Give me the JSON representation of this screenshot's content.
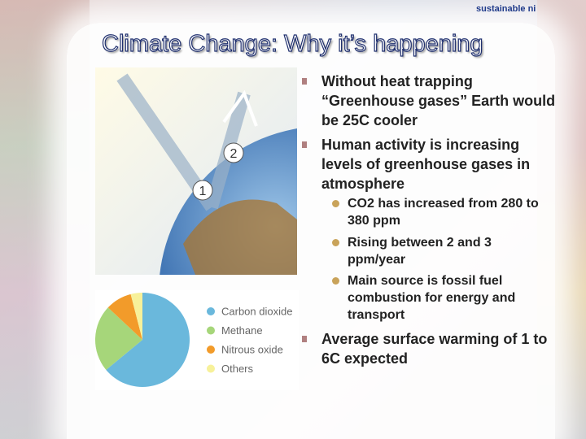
{
  "header": {
    "title": "Climate Change: Why it’s happening",
    "logo": "sustainable ni"
  },
  "diagram": {
    "labels": [
      "1",
      "2"
    ]
  },
  "bullets": [
    {
      "text": "Without heat trapping “Greenhouse gases” Earth would be 25C cooler",
      "sub": []
    },
    {
      "text": "Human activity is increasing levels of greenhouse gases in atmosphere",
      "sub": [
        "CO2 has increased from 280 to 380 ppm",
        "Rising between 2 and 3 ppm/year",
        "Main source is fossil fuel combustion for energy and transport"
      ]
    },
    {
      "text": "Average surface warming of 1 to 6C expected",
      "sub": []
    }
  ],
  "chart_data": {
    "type": "pie",
    "categories": [
      "Carbon dioxide",
      "Methane",
      "Nitrous oxide",
      "Others"
    ],
    "values": [
      64,
      23,
      9,
      4
    ],
    "colors": [
      "#6ab8dc",
      "#a6d67a",
      "#f29b2a",
      "#f7f19a"
    ]
  }
}
